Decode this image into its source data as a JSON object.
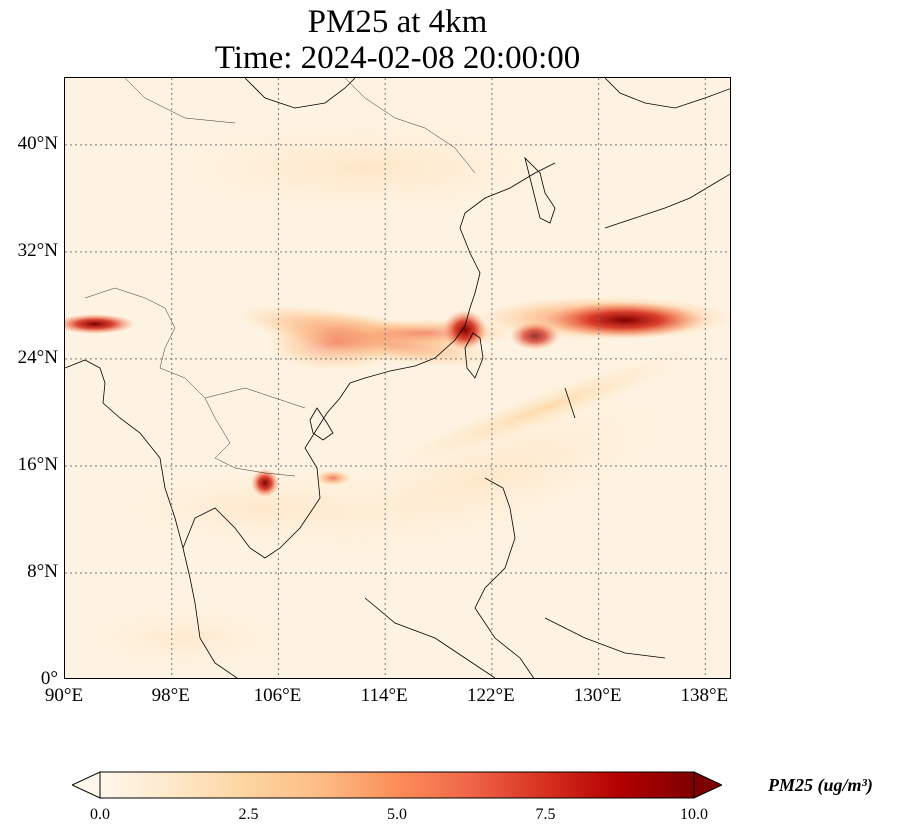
{
  "title": {
    "line1": "PM25 at 4km",
    "line2": "Time: 2024-02-08 20:00:00"
  },
  "map": {
    "projection": "PlateCarree",
    "lon_range": [
      90,
      140
    ],
    "lat_range": [
      0,
      45
    ],
    "gridlines": "dotted",
    "lat_ticks": [
      "0°",
      "8°N",
      "16°N",
      "24°N",
      "32°N",
      "40°N"
    ],
    "lon_ticks": [
      "90°E",
      "98°E",
      "106°E",
      "114°E",
      "122°E",
      "130°E",
      "138°E"
    ],
    "plumes": [
      {
        "name": "taiwan-strait-hotspot",
        "lon": 120,
        "lat": 25.5,
        "level": 10
      },
      {
        "name": "east-china-sea-band",
        "lon": 132,
        "lat": 26.5,
        "level": 9
      },
      {
        "name": "south-china-band",
        "lon": 112,
        "lat": 25,
        "level": 6
      },
      {
        "name": "cambodia-hotspot",
        "lon": 105,
        "lat": 14.5,
        "level": 10
      },
      {
        "name": "myanmar-band",
        "lon": 92,
        "lat": 26.5,
        "level": 9
      }
    ]
  },
  "colorbar": {
    "colormap": "OrRd",
    "colors": [
      "#fff7ec",
      "#fee8c8",
      "#fdd49e",
      "#fdbb84",
      "#fc8d59",
      "#ef6548",
      "#d7301f",
      "#b30000",
      "#7f0000"
    ],
    "ticks": [
      "0.0",
      "2.5",
      "5.0",
      "7.5",
      "10.0"
    ],
    "range": [
      0,
      10
    ],
    "label": "PM25 (ug/m³)",
    "extend": "both"
  }
}
